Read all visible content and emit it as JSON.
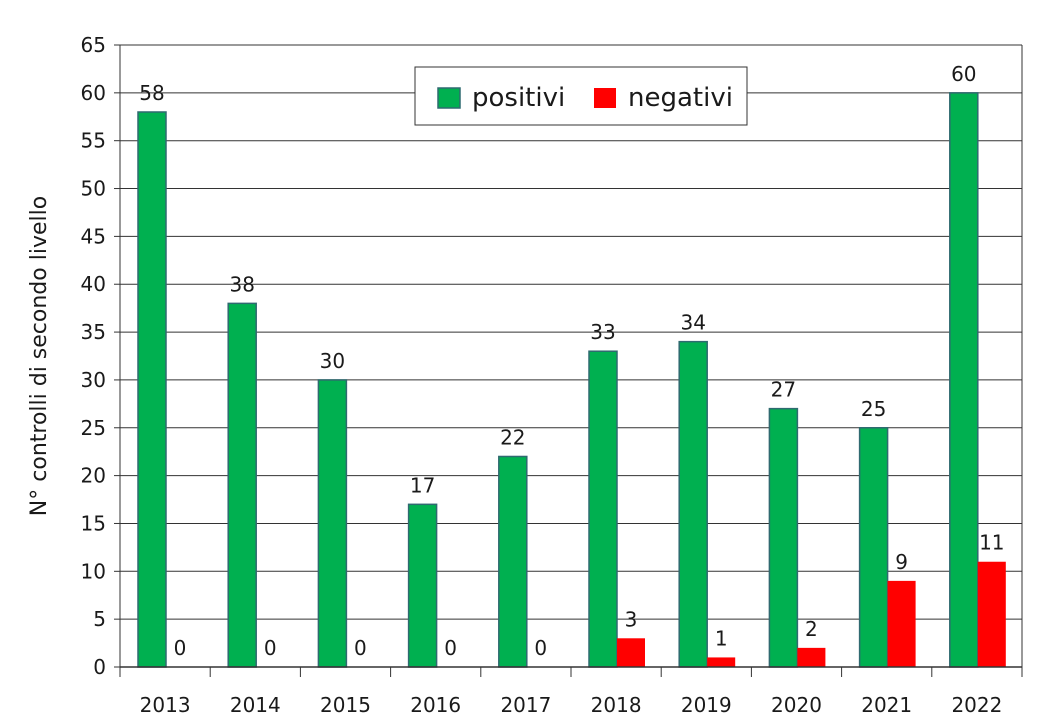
{
  "chart_data": {
    "type": "bar",
    "title": "",
    "xlabel": "",
    "ylabel": "N° controlli di secondo livello",
    "ylim": [
      0,
      65
    ],
    "yticks": [
      0,
      5,
      10,
      15,
      20,
      25,
      30,
      35,
      40,
      45,
      50,
      55,
      60,
      65
    ],
    "grid": true,
    "legend_position": "top-center",
    "categories": [
      "2013",
      "2014",
      "2015",
      "2016",
      "2017",
      "2018",
      "2019",
      "2020",
      "2021",
      "2022"
    ],
    "series": [
      {
        "name": "positivi",
        "color": "#00b050",
        "values": [
          58,
          38,
          30,
          17,
          22,
          33,
          34,
          27,
          25,
          60
        ]
      },
      {
        "name": "negativi",
        "color": "#ff0000",
        "values": [
          0,
          0,
          0,
          0,
          0,
          3,
          1,
          2,
          9,
          11
        ]
      }
    ]
  }
}
